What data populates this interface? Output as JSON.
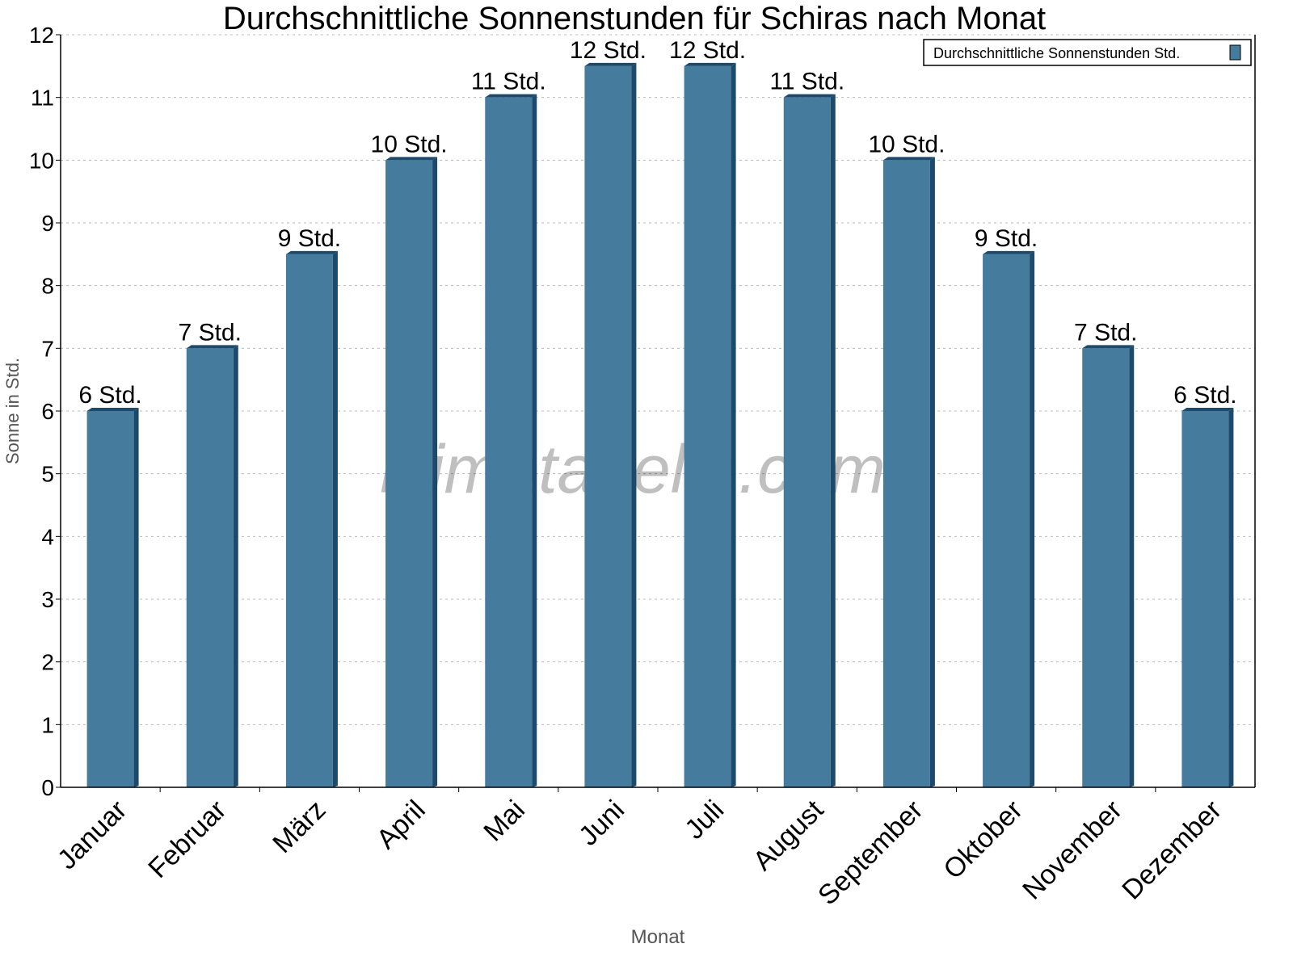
{
  "chart_data": {
    "type": "bar",
    "title": "Durchschnittliche Sonnenstunden für Schiras nach Monat",
    "xlabel": "Monat",
    "ylabel": "Sonne in Std.",
    "ylim": [
      0,
      12
    ],
    "yticks": [
      0,
      1,
      2,
      3,
      4,
      5,
      6,
      7,
      8,
      9,
      10,
      11,
      12
    ],
    "grid": true,
    "legend_position": "top-right",
    "categories": [
      "Januar",
      "Februar",
      "März",
      "April",
      "Mai",
      "Juni",
      "Juli",
      "August",
      "September",
      "Oktober",
      "November",
      "Dezember"
    ],
    "series": [
      {
        "name": "Durchschnittliche Sonnenstunden Std.",
        "color": "#457b9d",
        "side_color": "#1d4a6b",
        "values": [
          6,
          7,
          8.5,
          10,
          11,
          11.5,
          11.5,
          11,
          10,
          8.5,
          7,
          6
        ],
        "labels": [
          "6 Std.",
          "7 Std.",
          "9 Std.",
          "10 Std.",
          "11 Std.",
          "12 Std.",
          "12 Std.",
          "11 Std.",
          "10 Std.",
          "9 Std.",
          "7 Std.",
          "6 Std."
        ]
      }
    ],
    "watermark": "klimatabelle.com"
  }
}
